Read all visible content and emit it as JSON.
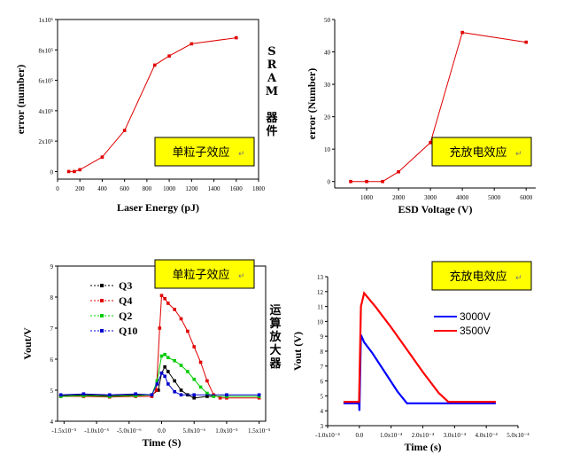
{
  "side_labels": {
    "sram": "SRAM 器件",
    "opamp": "运算放大器"
  },
  "chart_data": [
    {
      "type": "line",
      "panel": "top-left",
      "badge": "单粒子效应",
      "xlabel": "Laser Energy (pJ)",
      "ylabel": "error (number)",
      "xlim": [
        0,
        1800
      ],
      "ylim": [
        -50000,
        1000000
      ],
      "xticks": [
        "0",
        "200",
        "400",
        "600",
        "800",
        "1000",
        "1200",
        "1400",
        "1600",
        "1800"
      ],
      "yticks": [
        "0",
        "2x10⁵",
        "4x10⁵",
        "6x10⁵",
        "8x10⁵",
        "1x10⁶"
      ],
      "color": "#e00000",
      "series": [
        {
          "x": [
            100,
            150,
            200,
            400,
            600,
            870,
            1000,
            1200,
            1600
          ],
          "y": [
            0,
            0,
            12000,
            95000,
            270000,
            700000,
            760000,
            840000,
            880000
          ]
        }
      ]
    },
    {
      "type": "line",
      "panel": "top-right",
      "badge": "充放电效应",
      "xlabel": "ESD Voltage (V)",
      "ylabel": "error (Number)",
      "xlim": [
        0,
        6300
      ],
      "ylim": [
        -2,
        50
      ],
      "xticks": [
        "1000",
        "2000",
        "3000",
        "4000",
        "5000",
        "6000"
      ],
      "yticks": [
        "0",
        "10",
        "20",
        "30",
        "40",
        "50"
      ],
      "color": "#e00000",
      "series": [
        {
          "x": [
            500,
            1000,
            1500,
            2000,
            3000,
            4000,
            6000
          ],
          "y": [
            0,
            0,
            0,
            3,
            12,
            46,
            43
          ]
        }
      ]
    },
    {
      "type": "line",
      "panel": "bottom-left",
      "badge": "单粒子效应",
      "xlabel": "Time (S)",
      "ylabel": "Vout/V",
      "xlim": [
        -1.6e-05,
        1.6e-05
      ],
      "ylim": [
        4,
        9
      ],
      "xticks": [
        "-1.5x10⁻⁵",
        "-1.0x10⁻⁵",
        "-5.0x10⁻⁶",
        "0.0",
        "5.0x10⁻⁶",
        "1.0x10⁻⁵",
        "1.5x10⁻⁵"
      ],
      "yticks": [
        "4",
        "5",
        "6",
        "7",
        "8",
        "9"
      ],
      "legend": [
        "Q3",
        "Q4",
        "Q2",
        "Q10"
      ],
      "series": [
        {
          "name": "Q3",
          "color": "#000000",
          "x": [
            -1.55e-05,
            -1.2e-05,
            -8e-06,
            -4e-06,
            -1.5e-06,
            -5e-07,
            0,
            5e-07,
            1e-06,
            2e-06,
            3e-06,
            4e-06,
            5e-06,
            7e-06,
            1e-05,
            1.5e-05
          ],
          "y": [
            4.82,
            4.85,
            4.82,
            4.85,
            4.85,
            5.0,
            5.55,
            5.75,
            5.6,
            5.3,
            5.0,
            4.85,
            4.75,
            4.8,
            4.8,
            4.8
          ]
        },
        {
          "name": "Q4",
          "color": "#e00000",
          "x": [
            -1.55e-05,
            -1.2e-05,
            -8e-06,
            -4e-06,
            -1.5e-06,
            -8e-07,
            -3e-07,
            0,
            5e-07,
            1e-06,
            2e-06,
            3e-06,
            4e-06,
            5e-06,
            6e-06,
            7e-06,
            8e-06,
            9e-06,
            1e-05,
            1.5e-05
          ],
          "y": [
            4.8,
            4.8,
            4.78,
            4.8,
            4.8,
            5.0,
            7.0,
            8.05,
            7.95,
            7.8,
            7.6,
            7.3,
            6.9,
            6.4,
            5.9,
            5.3,
            4.85,
            4.75,
            4.75,
            4.75
          ]
        },
        {
          "name": "Q2",
          "color": "#00cc00",
          "x": [
            -1.55e-05,
            -1.2e-05,
            -8e-06,
            -4e-06,
            -1.5e-06,
            -7e-07,
            0,
            5e-07,
            1e-06,
            2e-06,
            3e-06,
            4e-06,
            5e-06,
            6e-06,
            7e-06,
            8e-06,
            1e-05,
            1.5e-05
          ],
          "y": [
            4.8,
            4.82,
            4.8,
            4.82,
            4.85,
            5.3,
            6.1,
            6.15,
            6.05,
            5.95,
            5.8,
            5.6,
            5.35,
            5.1,
            4.9,
            4.8,
            4.8,
            4.8
          ]
        },
        {
          "name": "Q10",
          "color": "#0000cc",
          "x": [
            -1.55e-05,
            -1.2e-05,
            -8e-06,
            -4e-06,
            -1.5e-06,
            -7e-07,
            0,
            5e-07,
            1e-06,
            2e-06,
            3e-06,
            5e-06,
            1e-05,
            1.5e-05
          ],
          "y": [
            4.85,
            4.88,
            4.85,
            4.88,
            4.85,
            5.2,
            5.55,
            5.45,
            5.2,
            4.95,
            4.85,
            4.85,
            4.85,
            4.85
          ]
        }
      ]
    },
    {
      "type": "line",
      "panel": "bottom-right",
      "badge": "充放电效应",
      "xlabel": "Time (s)",
      "ylabel": "Vout (V)",
      "xlim": [
        -0.0001,
        0.0005
      ],
      "ylim": [
        3,
        13
      ],
      "xticks": [
        "-1.0x10⁻⁴",
        "0.0",
        "1.0x10⁻⁴",
        "2.0x10⁻⁴",
        "3.0x10⁻⁴",
        "4.0x10⁻⁴",
        "5.0x10⁻⁴"
      ],
      "yticks": [
        "3",
        "4",
        "5",
        "6",
        "7",
        "8",
        "9",
        "10",
        "11",
        "12",
        "13"
      ],
      "legend": [
        "3000V",
        "3500V"
      ],
      "series": [
        {
          "name": "3000V",
          "color": "#0000ff",
          "x": [
            -5e-05,
            -1e-06,
            1e-07,
            5e-06,
            1.5e-05,
            4e-05,
            8e-05,
            0.00012,
            0.00015,
            0.00018,
            0.0002,
            0.0003,
            0.0004,
            0.00043
          ],
          "y": [
            4.5,
            4.5,
            4.0,
            9.1,
            8.6,
            7.9,
            6.6,
            5.3,
            4.5,
            4.5,
            4.5,
            4.5,
            4.5,
            4.5
          ]
        },
        {
          "name": "3500V",
          "color": "#ff0000",
          "x": [
            -5e-05,
            -1e-06,
            5e-06,
            1.5e-05,
            5e-05,
            0.0001,
            0.00015,
            0.0002,
            0.00025,
            0.00028,
            0.0003,
            0.0004,
            0.00043
          ],
          "y": [
            4.6,
            4.6,
            11.0,
            11.9,
            11.0,
            9.6,
            8.1,
            6.6,
            5.2,
            4.6,
            4.6,
            4.6,
            4.6
          ]
        }
      ]
    }
  ]
}
